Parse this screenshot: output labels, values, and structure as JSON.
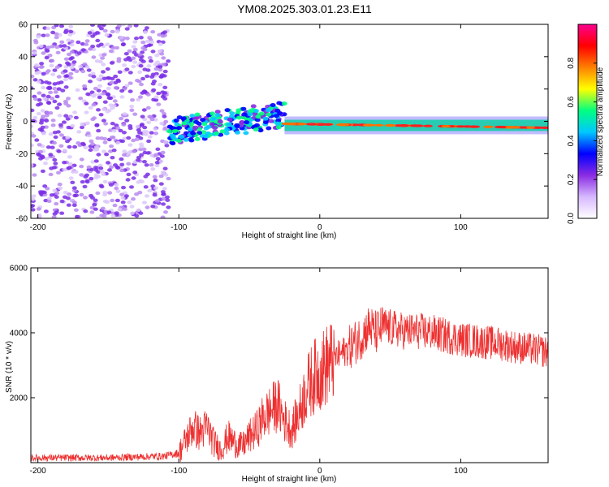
{
  "title": "YM08.2025.303.01.23.E11",
  "chart_data": [
    {
      "type": "heatmap",
      "xlabel": "Height of straight line (km)",
      "ylabel": "Frequency (Hz)",
      "xlim": [
        -205,
        162
      ],
      "ylim": [
        -60,
        60
      ],
      "xticks": [
        -200,
        -100,
        0,
        100
      ],
      "yticks": [
        60,
        40,
        20,
        0,
        -20,
        -40,
        -60
      ],
      "colorbar": {
        "label": "Normalized spectral amplitude",
        "range": [
          0,
          1
        ],
        "ticks": [
          0.0,
          0.2,
          0.4,
          0.6,
          0.8
        ],
        "colors": [
          "#ffffff",
          "#d6b8ff",
          "#8a2be2",
          "#0000ff",
          "#00c8ff",
          "#00ff80",
          "#ffff00",
          "#ff8000",
          "#ff0000",
          "#ff0090"
        ]
      },
      "regions": [
        {
          "name": "noise",
          "x": [
            -205,
            -107
          ],
          "freq": [
            -60,
            60
          ],
          "amplitude": [
            0.05,
            0.15
          ]
        },
        {
          "name": "scattered",
          "x": [
            -107,
            -25
          ],
          "freq": [
            -10,
            15
          ],
          "amplitude": [
            0.2,
            0.6
          ]
        },
        {
          "name": "line",
          "x": [
            -25,
            162
          ],
          "freq": [
            -5,
            0
          ],
          "amplitude": [
            0.7,
            1.0
          ]
        }
      ]
    },
    {
      "type": "line",
      "xlabel": "Height of straight line (km)",
      "ylabel": "SNR (10 * v/v)",
      "xlim": [
        -205,
        162
      ],
      "ylim": [
        0,
        6000
      ],
      "xticks": [
        -200,
        -100,
        0,
        100
      ],
      "yticks": [
        2000,
        4000,
        6000
      ],
      "series": [
        {
          "name": "SNR",
          "color": "#ee3030",
          "x": [
            -205,
            -150,
            -110,
            -100,
            -95,
            -90,
            -85,
            -80,
            -75,
            -70,
            -65,
            -60,
            -55,
            -50,
            -45,
            -40,
            -35,
            -30,
            -25,
            -20,
            -15,
            -10,
            -5,
            0,
            10,
            20,
            25,
            30,
            35,
            40,
            45,
            50,
            60,
            70,
            80,
            90,
            100,
            110,
            120,
            130,
            140,
            150,
            162
          ],
          "y": [
            150,
            150,
            200,
            300,
            700,
            1100,
            900,
            1100,
            600,
            400,
            800,
            600,
            500,
            800,
            1000,
            1400,
            1600,
            1800,
            1300,
            1000,
            1500,
            2200,
            2600,
            2800,
            3200,
            3500,
            3700,
            3900,
            4200,
            4000,
            4200,
            4150,
            4050,
            4050,
            4000,
            3900,
            3800,
            3750,
            3700,
            3650,
            3550,
            3500,
            3400
          ]
        }
      ]
    }
  ]
}
